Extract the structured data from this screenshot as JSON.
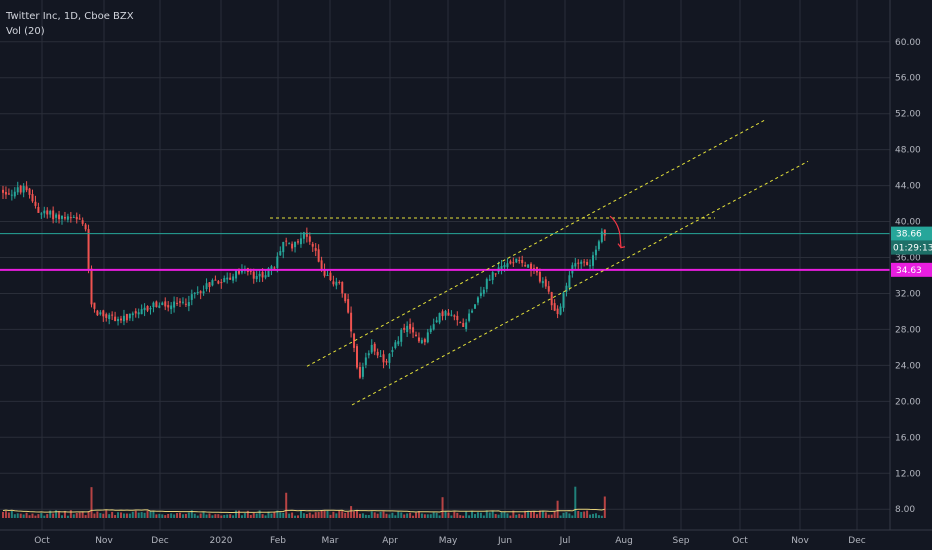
{
  "header": {
    "title": "Twitter Inc, 1D, Cboe BZX",
    "volume_label": "Vol (20)"
  },
  "colors": {
    "background": "#131722",
    "grid": "#2a2e39",
    "up": "#26a69a",
    "down": "#ef5350",
    "volume_ma": "#e5d27a",
    "support_line": "#e91ee0",
    "last_price_line": "#26a69a",
    "channel": "#e5e23a",
    "arrow": "#f23645",
    "axis_text": "#b2b5be"
  },
  "chart_data": {
    "type": "candlestick",
    "symbol": "Twitter Inc",
    "interval": "1D",
    "exchange": "Cboe BZX",
    "x_ticks": [
      "Oct",
      "Nov",
      "Dec",
      "2020",
      "Feb",
      "Mar",
      "Apr",
      "May",
      "Jun",
      "Jul",
      "Aug",
      "Sep",
      "Oct",
      "Nov",
      "Dec"
    ],
    "y_ticks": [
      "60.00",
      "56.00",
      "52.00",
      "48.00",
      "44.00",
      "40.00",
      "36.00",
      "32.00",
      "28.00",
      "24.00",
      "20.00",
      "16.00",
      "12.00",
      "8.00"
    ],
    "price_range": [
      6.8,
      62.2
    ],
    "price_path": [
      [
        0,
        43.5
      ],
      [
        12,
        43.2
      ],
      [
        25,
        43.6
      ],
      [
        33,
        42.6
      ],
      [
        42,
        41.0
      ],
      [
        55,
        40.7
      ],
      [
        70,
        40.3
      ],
      [
        80,
        40.1
      ],
      [
        88,
        39.2
      ],
      [
        92,
        31.2
      ],
      [
        100,
        29.8
      ],
      [
        115,
        29.3
      ],
      [
        125,
        29.1
      ],
      [
        140,
        29.6
      ],
      [
        155,
        30.8
      ],
      [
        170,
        30.5
      ],
      [
        185,
        30.9
      ],
      [
        200,
        32.2
      ],
      [
        215,
        33.4
      ],
      [
        230,
        33.6
      ],
      [
        245,
        34.8
      ],
      [
        258,
        33.6
      ],
      [
        268,
        34.4
      ],
      [
        276,
        34.8
      ],
      [
        285,
        37.8
      ],
      [
        292,
        37.1
      ],
      [
        300,
        38.1
      ],
      [
        308,
        38.6
      ],
      [
        312,
        38.0
      ],
      [
        318,
        36.6
      ],
      [
        326,
        34.3
      ],
      [
        334,
        33.0
      ],
      [
        340,
        33.7
      ],
      [
        346,
        31.5
      ],
      [
        352,
        28.6
      ],
      [
        358,
        24.0
      ],
      [
        362,
        22.4
      ],
      [
        368,
        24.6
      ],
      [
        375,
        26.2
      ],
      [
        382,
        25.1
      ],
      [
        388,
        24.4
      ],
      [
        395,
        25.6
      ],
      [
        405,
        28.3
      ],
      [
        415,
        27.5
      ],
      [
        425,
        26.7
      ],
      [
        435,
        28.4
      ],
      [
        445,
        30.0
      ],
      [
        455,
        29.2
      ],
      [
        465,
        28.5
      ],
      [
        475,
        30.6
      ],
      [
        485,
        32.6
      ],
      [
        495,
        34.3
      ],
      [
        505,
        34.9
      ],
      [
        512,
        35.5
      ],
      [
        520,
        36.1
      ],
      [
        528,
        35.1
      ],
      [
        538,
        34.2
      ],
      [
        548,
        32.9
      ],
      [
        556,
        29.6
      ],
      [
        562,
        30.4
      ],
      [
        568,
        32.6
      ],
      [
        575,
        35.3
      ],
      [
        582,
        35.9
      ],
      [
        590,
        35.0
      ],
      [
        598,
        36.6
      ],
      [
        604,
        38.6
      ]
    ],
    "volume": {
      "range": [
        7.8,
        60
      ],
      "baseline": 9.6,
      "moving_average": 20,
      "spikes": [
        {
          "x": 90,
          "value": 21.0
        },
        {
          "x": 285,
          "value": 18.6
        },
        {
          "x": 350,
          "value": 12.9
        },
        {
          "x": 443,
          "value": 16.7
        },
        {
          "x": 558,
          "value": 15.2
        },
        {
          "x": 574,
          "value": 21.2
        },
        {
          "x": 605,
          "value": 17.0
        }
      ]
    },
    "annotations": {
      "last_price": 38.66,
      "last_price_label": "38.66",
      "countdown": "01:29:13",
      "support_level": 34.63,
      "support_label": "34.63",
      "resistance_level": 40.4,
      "resistance_span_x": [
        270,
        715
      ],
      "channel_upper": [
        [
          307,
          23.9
        ],
        [
          765,
          51.3
        ]
      ],
      "channel_lower": [
        [
          352,
          19.6
        ],
        [
          808,
          46.7
        ]
      ],
      "arrow_points": [
        [
          610,
          40.6
        ],
        [
          618,
          39.9
        ],
        [
          620,
          38.5
        ],
        [
          621,
          37.1
        ],
        [
          625,
          37.2
        ]
      ]
    },
    "grid": true,
    "legend": "none"
  }
}
